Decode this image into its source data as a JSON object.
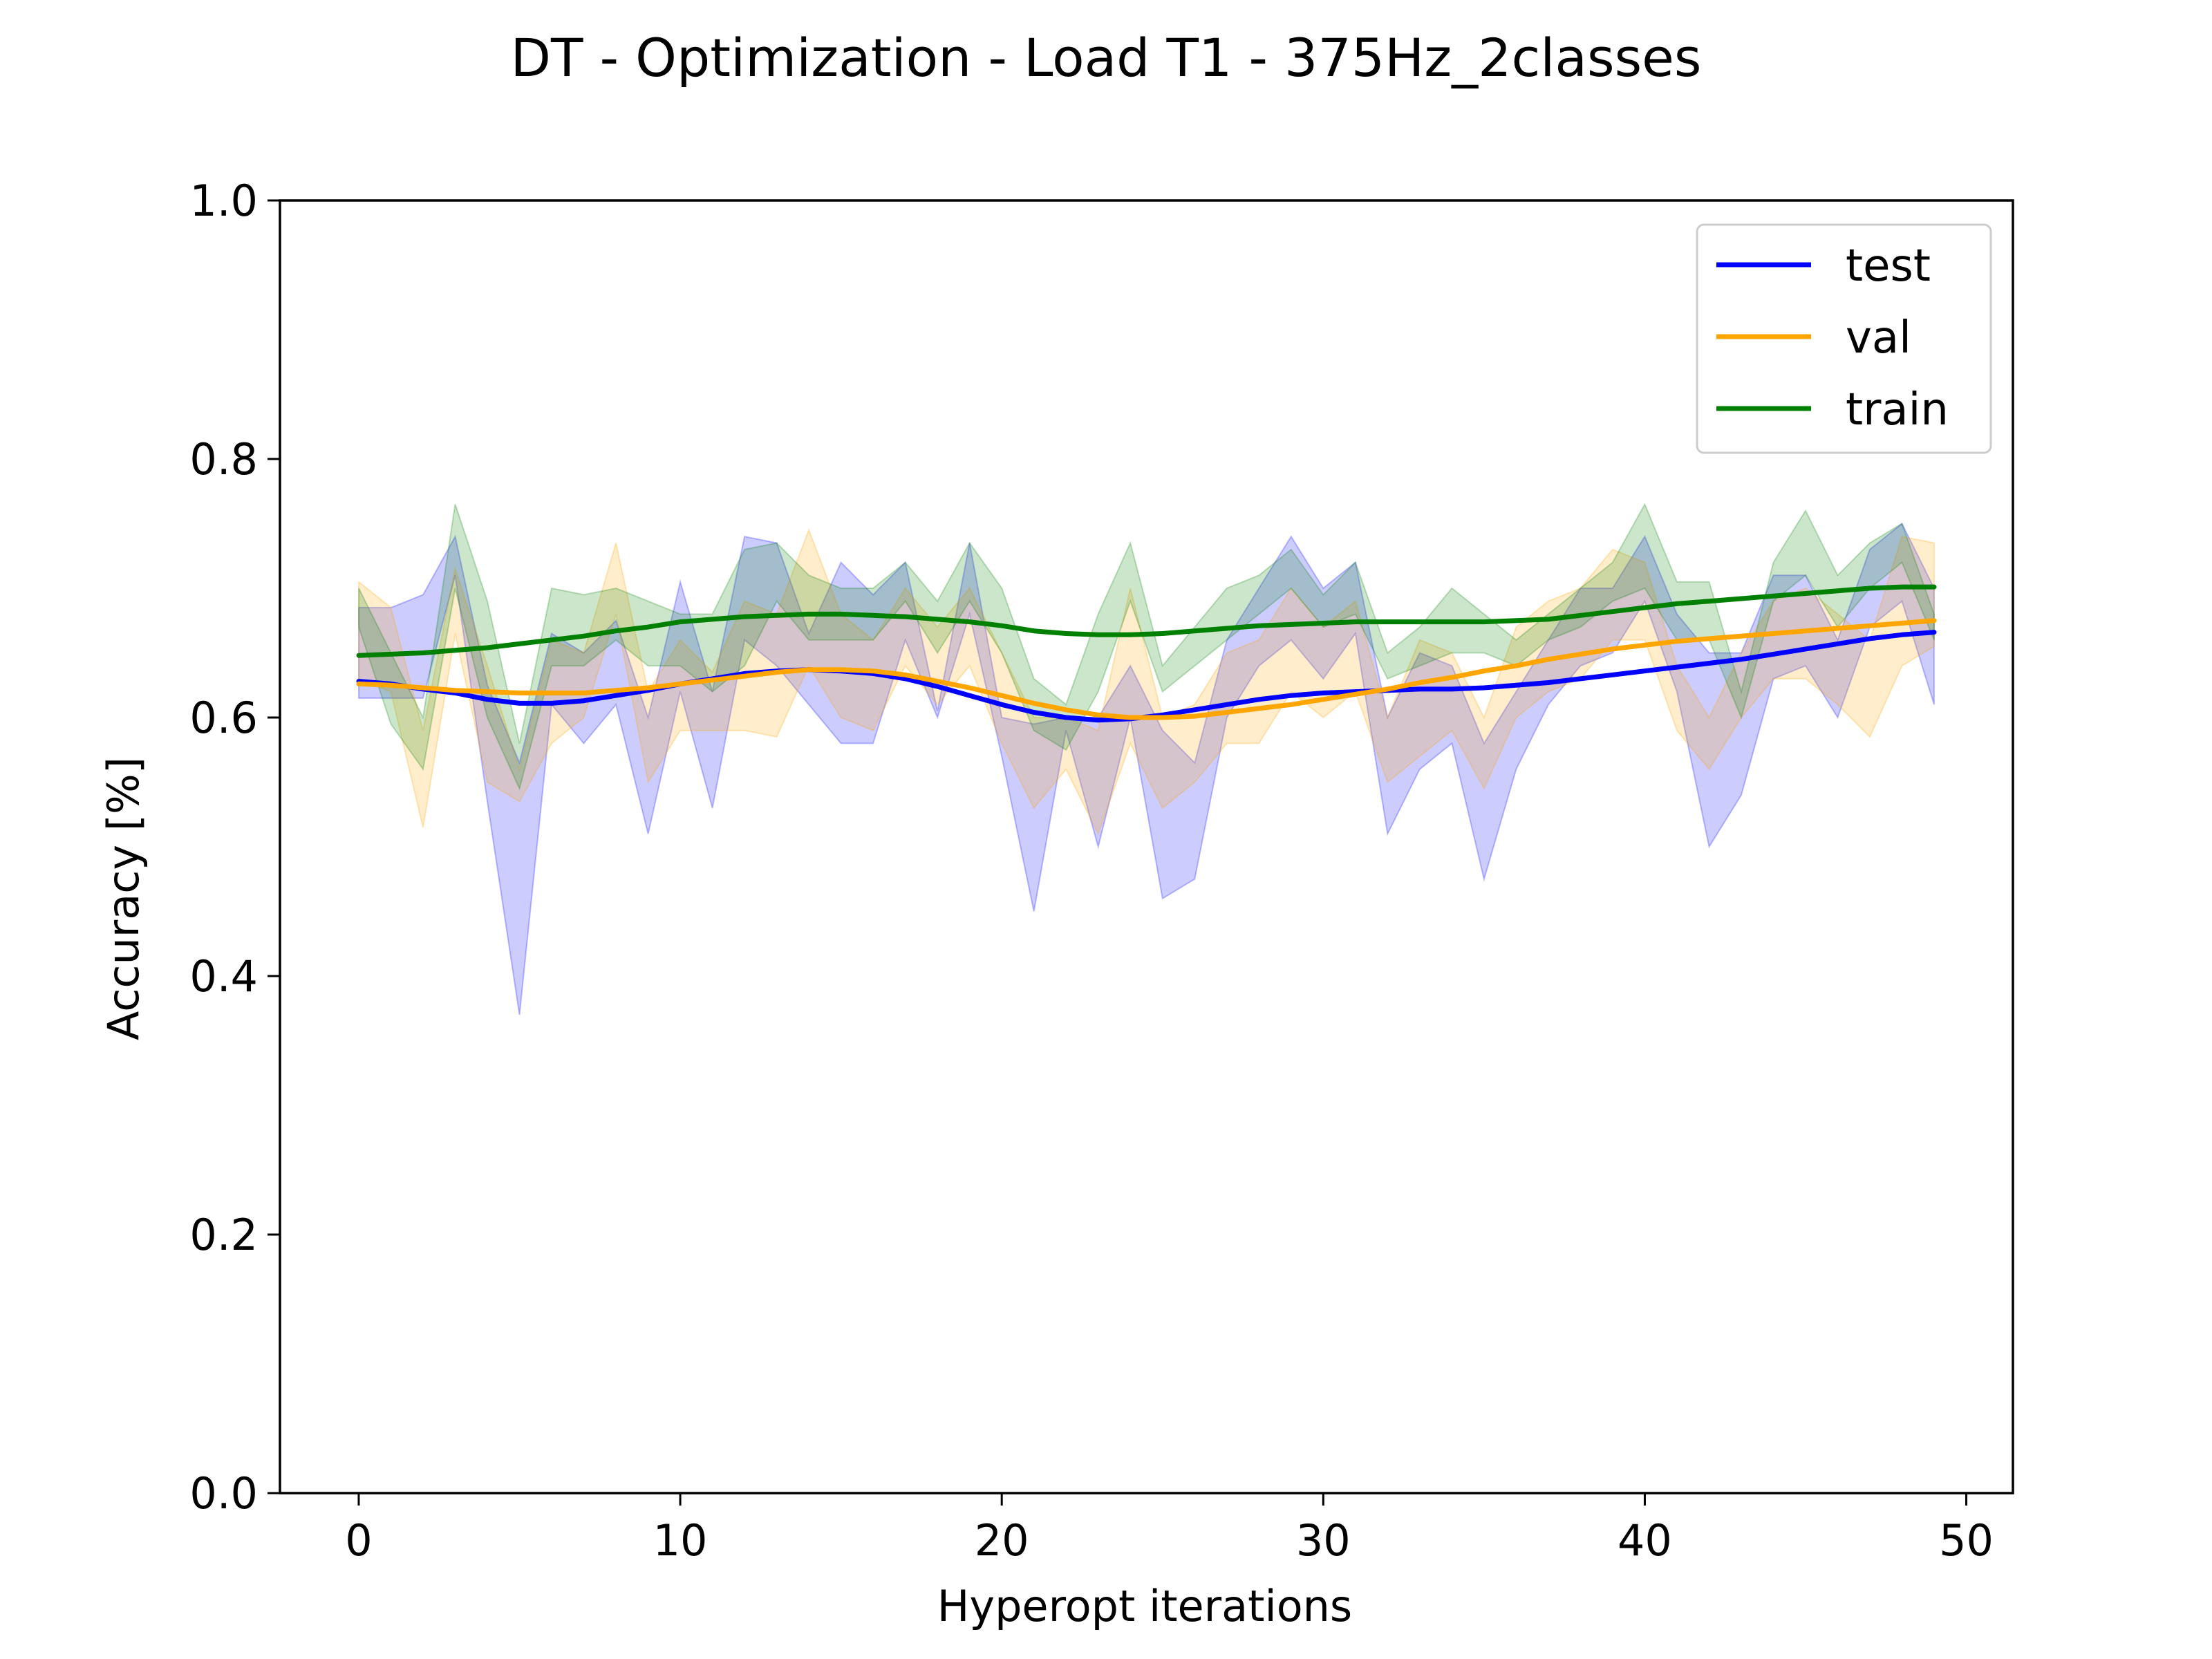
{
  "chart_data": {
    "type": "line",
    "title": "DT - Optimization - Load T1 - 375Hz_2classes",
    "xlabel": "Hyperopt iterations",
    "ylabel": "Accuracy [%]",
    "xlim": [
      -2.45,
      51.45
    ],
    "ylim": [
      0.0,
      1.0
    ],
    "xticks": [
      0,
      10,
      20,
      30,
      40,
      50
    ],
    "yticks": [
      0.0,
      0.2,
      0.4,
      0.6,
      0.8,
      1.0
    ],
    "xtick_labels": [
      "0",
      "10",
      "20",
      "30",
      "40",
      "50"
    ],
    "ytick_labels": [
      "0.0",
      "0.2",
      "0.4",
      "0.6",
      "0.8",
      "1.0"
    ],
    "grid": false,
    "legend_position": "top-right",
    "x": [
      0,
      1,
      2,
      3,
      4,
      5,
      6,
      7,
      8,
      9,
      10,
      11,
      12,
      13,
      14,
      15,
      16,
      17,
      18,
      19,
      20,
      21,
      22,
      23,
      24,
      25,
      26,
      27,
      28,
      29,
      30,
      31,
      32,
      33,
      34,
      35,
      36,
      37,
      38,
      39,
      40,
      41,
      42,
      43,
      44,
      45,
      46,
      47,
      48,
      49
    ],
    "series": [
      {
        "name": "test",
        "color": "#0000ff",
        "values": [
          0.628,
          0.626,
          0.622,
          0.619,
          0.614,
          0.611,
          0.611,
          0.613,
          0.617,
          0.621,
          0.626,
          0.63,
          0.634,
          0.636,
          0.637,
          0.636,
          0.634,
          0.63,
          0.624,
          0.617,
          0.61,
          0.604,
          0.6,
          0.598,
          0.599,
          0.602,
          0.606,
          0.61,
          0.614,
          0.617,
          0.619,
          0.62,
          0.621,
          0.622,
          0.622,
          0.623,
          0.625,
          0.627,
          0.63,
          0.633,
          0.636,
          0.639,
          0.642,
          0.645,
          0.649,
          0.653,
          0.657,
          0.661,
          0.664,
          0.666
        ],
        "band_upper": [
          0.685,
          0.685,
          0.695,
          0.74,
          0.625,
          0.565,
          0.665,
          0.65,
          0.675,
          0.6,
          0.705,
          0.62,
          0.74,
          0.735,
          0.665,
          0.72,
          0.695,
          0.72,
          0.605,
          0.735,
          0.6,
          0.595,
          0.6,
          0.6,
          0.64,
          0.59,
          0.565,
          0.66,
          0.7,
          0.74,
          0.7,
          0.72,
          0.6,
          0.65,
          0.64,
          0.58,
          0.62,
          0.66,
          0.7,
          0.7,
          0.74,
          0.68,
          0.65,
          0.65,
          0.71,
          0.71,
          0.66,
          0.73,
          0.75,
          0.7
        ],
        "band_lower": [
          0.615,
          0.615,
          0.615,
          0.71,
          0.535,
          0.37,
          0.61,
          0.58,
          0.61,
          0.51,
          0.62,
          0.53,
          0.66,
          0.64,
          0.61,
          0.58,
          0.58,
          0.66,
          0.6,
          0.68,
          0.57,
          0.45,
          0.59,
          0.5,
          0.6,
          0.46,
          0.475,
          0.6,
          0.64,
          0.66,
          0.63,
          0.665,
          0.51,
          0.56,
          0.58,
          0.475,
          0.56,
          0.61,
          0.64,
          0.65,
          0.69,
          0.62,
          0.5,
          0.54,
          0.63,
          0.64,
          0.6,
          0.67,
          0.69,
          0.61
        ]
      },
      {
        "name": "val",
        "color": "#ffa500",
        "values": [
          0.626,
          0.625,
          0.623,
          0.621,
          0.62,
          0.619,
          0.619,
          0.619,
          0.621,
          0.623,
          0.626,
          0.629,
          0.632,
          0.635,
          0.637,
          0.637,
          0.636,
          0.633,
          0.628,
          0.623,
          0.617,
          0.611,
          0.606,
          0.602,
          0.6,
          0.6,
          0.601,
          0.604,
          0.607,
          0.61,
          0.614,
          0.618,
          0.622,
          0.627,
          0.631,
          0.636,
          0.64,
          0.645,
          0.649,
          0.653,
          0.656,
          0.659,
          0.661,
          0.663,
          0.665,
          0.667,
          0.669,
          0.671,
          0.673,
          0.675
        ],
        "band_upper": [
          0.705,
          0.685,
          0.59,
          0.715,
          0.64,
          0.56,
          0.66,
          0.65,
          0.735,
          0.62,
          0.66,
          0.635,
          0.69,
          0.68,
          0.745,
          0.68,
          0.66,
          0.7,
          0.67,
          0.7,
          0.65,
          0.6,
          0.6,
          0.59,
          0.7,
          0.6,
          0.61,
          0.65,
          0.66,
          0.7,
          0.67,
          0.69,
          0.6,
          0.66,
          0.65,
          0.6,
          0.67,
          0.69,
          0.7,
          0.73,
          0.72,
          0.64,
          0.6,
          0.65,
          0.69,
          0.7,
          0.68,
          0.66,
          0.74,
          0.735
        ],
        "band_lower": [
          0.63,
          0.62,
          0.515,
          0.665,
          0.55,
          0.535,
          0.58,
          0.6,
          0.68,
          0.55,
          0.59,
          0.59,
          0.59,
          0.585,
          0.64,
          0.6,
          0.59,
          0.64,
          0.61,
          0.64,
          0.58,
          0.53,
          0.56,
          0.51,
          0.58,
          0.53,
          0.55,
          0.58,
          0.58,
          0.62,
          0.6,
          0.62,
          0.55,
          0.57,
          0.59,
          0.545,
          0.6,
          0.62,
          0.63,
          0.66,
          0.66,
          0.59,
          0.56,
          0.6,
          0.63,
          0.63,
          0.61,
          0.585,
          0.64,
          0.655
        ]
      },
      {
        "name": "train",
        "color": "#008000",
        "values": [
          0.648,
          0.649,
          0.65,
          0.652,
          0.654,
          0.657,
          0.66,
          0.663,
          0.667,
          0.67,
          0.674,
          0.676,
          0.678,
          0.679,
          0.68,
          0.68,
          0.679,
          0.678,
          0.676,
          0.674,
          0.671,
          0.667,
          0.665,
          0.664,
          0.664,
          0.665,
          0.667,
          0.669,
          0.671,
          0.672,
          0.673,
          0.674,
          0.674,
          0.674,
          0.674,
          0.674,
          0.675,
          0.676,
          0.679,
          0.682,
          0.685,
          0.688,
          0.69,
          0.692,
          0.694,
          0.696,
          0.698,
          0.7,
          0.701,
          0.701
        ],
        "band_upper": [
          0.7,
          0.65,
          0.6,
          0.765,
          0.69,
          0.58,
          0.7,
          0.695,
          0.7,
          0.69,
          0.68,
          0.68,
          0.73,
          0.735,
          0.71,
          0.7,
          0.7,
          0.72,
          0.69,
          0.735,
          0.7,
          0.63,
          0.61,
          0.68,
          0.735,
          0.64,
          0.67,
          0.7,
          0.71,
          0.73,
          0.695,
          0.72,
          0.65,
          0.67,
          0.7,
          0.68,
          0.66,
          0.68,
          0.7,
          0.72,
          0.765,
          0.705,
          0.705,
          0.62,
          0.72,
          0.76,
          0.71,
          0.735,
          0.75,
          0.68
        ],
        "band_lower": [
          0.67,
          0.595,
          0.56,
          0.7,
          0.6,
          0.545,
          0.64,
          0.64,
          0.66,
          0.64,
          0.64,
          0.62,
          0.64,
          0.69,
          0.66,
          0.66,
          0.66,
          0.69,
          0.65,
          0.69,
          0.65,
          0.59,
          0.575,
          0.62,
          0.69,
          0.62,
          0.64,
          0.66,
          0.68,
          0.7,
          0.67,
          0.68,
          0.63,
          0.64,
          0.65,
          0.65,
          0.64,
          0.66,
          0.67,
          0.69,
          0.7,
          0.66,
          0.66,
          0.6,
          0.69,
          0.71,
          0.67,
          0.7,
          0.72,
          0.66
        ]
      }
    ]
  }
}
